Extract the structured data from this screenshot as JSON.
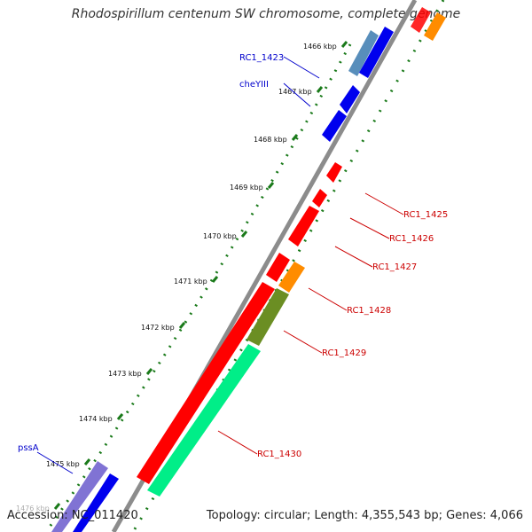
{
  "header": {
    "title": "Rhodospirillum centenum SW chromosome, complete genome"
  },
  "footer": {
    "accession": "Accession: NC_011420",
    "topology": "Topology: circular; Length: 4,355,543 bp; Genes: 4,066"
  },
  "scale": {
    "labels": [
      {
        "text": "1466 kbp"
      },
      {
        "text": "1467 kbp"
      },
      {
        "text": "1468 kbp"
      },
      {
        "text": "1469 kbp"
      },
      {
        "text": "1470 kbp"
      },
      {
        "text": "1471 kbp"
      },
      {
        "text": "1472 kbp"
      },
      {
        "text": "1473 kbp"
      },
      {
        "text": "1474 kbp"
      },
      {
        "text": "1475 kbp"
      },
      {
        "text": "1476 kbp"
      }
    ]
  },
  "gene_labels": [
    {
      "text": "RC1_1423",
      "color": "#0000cc"
    },
    {
      "text": "cheYIII",
      "color": "#0000cc"
    },
    {
      "text": "RC1_1425",
      "color": "#cc0000"
    },
    {
      "text": "RC1_1426",
      "color": "#cc0000"
    },
    {
      "text": "RC1_1427",
      "color": "#cc0000"
    },
    {
      "text": "RC1_1428",
      "color": "#cc0000"
    },
    {
      "text": "RC1_1429",
      "color": "#cc0000"
    },
    {
      "text": "RC1_1430",
      "color": "#cc0000"
    },
    {
      "text": "pssA",
      "color": "#0000cc"
    }
  ],
  "colors": {
    "backbone": "#8c8c8c",
    "ticks": "#1a7a1a",
    "gene_red": "#ff0000",
    "gene_blue": "#0000ee",
    "gene_orange": "#ff8c00",
    "gene_olive": "#6b8e23",
    "gene_green": "#00ee88",
    "gene_steel": "#4682b4",
    "gene_purple": "#6a5acd"
  }
}
